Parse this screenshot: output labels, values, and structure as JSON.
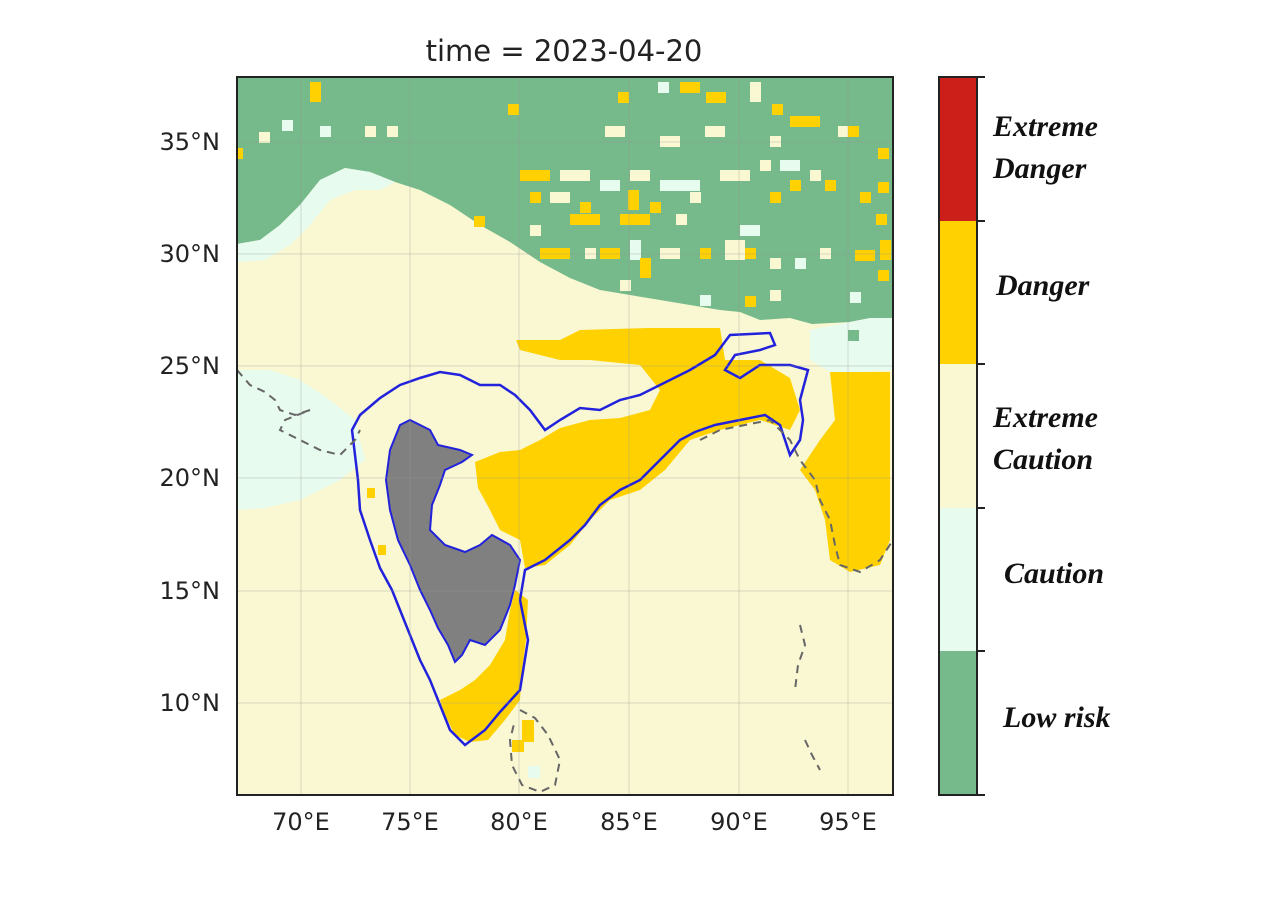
{
  "figure": {
    "title": "time = 2023-04-20"
  },
  "axes": {
    "x_ticks": [
      "70°E",
      "75°E",
      "80°E",
      "85°E",
      "90°E",
      "95°E"
    ],
    "y_ticks": [
      "35°N",
      "30°N",
      "25°N",
      "20°N",
      "15°N",
      "10°N"
    ]
  },
  "map_data": {
    "projection": "PlateCarree",
    "lon_range": [
      67,
      97
    ],
    "lat_range": [
      6,
      38
    ],
    "x_tick_values": [
      70,
      75,
      80,
      85,
      90,
      95
    ],
    "y_tick_values": [
      35,
      30,
      25,
      20,
      15,
      10
    ],
    "gridlines": true,
    "highlighted_region_outline_color": "#2222dd",
    "masked_region_color": "#808080",
    "coastline_style": "dashed"
  },
  "legend": {
    "categories": [
      {
        "label_lines": [
          "Extreme",
          "Danger"
        ],
        "color": "#cc1f1a"
      },
      {
        "label_lines": [
          "Danger"
        ],
        "color": "#ffd100"
      },
      {
        "label_lines": [
          "Extreme",
          "Caution"
        ],
        "color": "#f9f8d2"
      },
      {
        "label_lines": [
          "Caution"
        ],
        "color": "#e8fbef"
      },
      {
        "label_lines": [
          "Low risk"
        ],
        "color": "#76b98b"
      }
    ]
  }
}
